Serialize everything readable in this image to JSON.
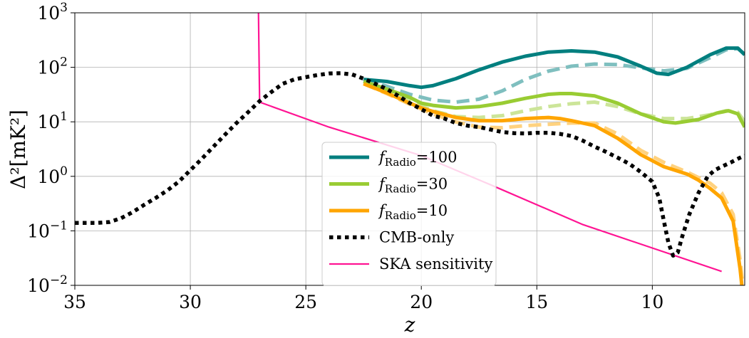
{
  "chart_data": {
    "type": "line",
    "title": "",
    "xlabel": "z",
    "ylabel": "Δ²[mK²]",
    "x_reversed": true,
    "xlim": [
      35,
      6
    ],
    "ylim": [
      0.01,
      1000
    ],
    "yscale": "log",
    "grid": true,
    "legend_position": "lower-center",
    "x_ticks": [
      {
        "value": 35,
        "label": "35"
      },
      {
        "value": 30,
        "label": "30"
      },
      {
        "value": 25,
        "label": "25"
      },
      {
        "value": 20,
        "label": "20"
      },
      {
        "value": 15,
        "label": "15"
      },
      {
        "value": 10,
        "label": "10"
      }
    ],
    "y_ticks": [
      {
        "value": 0.01,
        "base": "10",
        "exp": "−2"
      },
      {
        "value": 0.1,
        "base": "10",
        "exp": "−1"
      },
      {
        "value": 1,
        "base": "10",
        "exp": "0"
      },
      {
        "value": 10,
        "base": "10",
        "exp": "1"
      },
      {
        "value": 100,
        "base": "10",
        "exp": "2"
      },
      {
        "value": 1000,
        "base": "10",
        "exp": "3"
      }
    ],
    "series": [
      {
        "name": "f_Radio=100",
        "legend_main": "f",
        "legend_sub": "Radio",
        "legend_tail": "=100",
        "color": "#007f7f",
        "style": "solid",
        "in_legend": true,
        "points": [
          [
            22.5,
            60
          ],
          [
            21.5,
            55
          ],
          [
            20.5,
            46
          ],
          [
            20,
            43
          ],
          [
            19.5,
            46
          ],
          [
            18.5,
            62
          ],
          [
            17.5,
            90
          ],
          [
            16.5,
            125
          ],
          [
            15.5,
            160
          ],
          [
            14.5,
            190
          ],
          [
            13.5,
            200
          ],
          [
            12.5,
            190
          ],
          [
            11.5,
            155
          ],
          [
            10.5,
            105
          ],
          [
            9.8,
            78
          ],
          [
            9.3,
            74
          ],
          [
            8.5,
            100
          ],
          [
            7.5,
            170
          ],
          [
            6.8,
            225
          ],
          [
            6.3,
            225
          ],
          [
            6,
            170
          ]
        ]
      },
      {
        "name": "f_Radio=100 (dashed)",
        "color": "#7fbfbf",
        "style": "dashed",
        "in_legend": false,
        "points": [
          [
            22.5,
            60
          ],
          [
            21.5,
            45
          ],
          [
            20.5,
            32
          ],
          [
            19.5,
            25
          ],
          [
            18.5,
            23
          ],
          [
            17.5,
            26
          ],
          [
            16.5,
            37
          ],
          [
            15.5,
            60
          ],
          [
            14.5,
            85
          ],
          [
            13.5,
            105
          ],
          [
            12.5,
            115
          ],
          [
            11.5,
            112
          ],
          [
            10.5,
            98
          ],
          [
            9.5,
            86
          ],
          [
            8.5,
            96
          ],
          [
            7.5,
            150
          ],
          [
            6.8,
            210
          ],
          [
            6.3,
            220
          ],
          [
            6,
            175
          ]
        ]
      },
      {
        "name": "f_Radio=30",
        "legend_main": "f",
        "legend_sub": "Radio",
        "legend_tail": "=30",
        "color": "#99cc33",
        "style": "solid",
        "in_legend": true,
        "points": [
          [
            22.5,
            55
          ],
          [
            21.5,
            40
          ],
          [
            20.5,
            28
          ],
          [
            20,
            22
          ],
          [
            19.5,
            20
          ],
          [
            18.5,
            18
          ],
          [
            17.5,
            19
          ],
          [
            16.5,
            22
          ],
          [
            15.5,
            27
          ],
          [
            14.5,
            32
          ],
          [
            14,
            33
          ],
          [
            13.5,
            33
          ],
          [
            12.5,
            30
          ],
          [
            11.5,
            22
          ],
          [
            10.5,
            14
          ],
          [
            9.5,
            10
          ],
          [
            9,
            9.5
          ],
          [
            8,
            11
          ],
          [
            7.2,
            14.5
          ],
          [
            6.7,
            16
          ],
          [
            6.3,
            14
          ],
          [
            6,
            8
          ]
        ]
      },
      {
        "name": "f_Radio=30 (dashed)",
        "color": "#cce599",
        "style": "dashed",
        "in_legend": false,
        "points": [
          [
            22.5,
            55
          ],
          [
            21.5,
            38
          ],
          [
            20.5,
            24
          ],
          [
            19.5,
            16
          ],
          [
            18.5,
            12.5
          ],
          [
            17.5,
            12
          ],
          [
            16.5,
            13
          ],
          [
            15.5,
            16
          ],
          [
            14.5,
            19
          ],
          [
            13.5,
            21.5
          ],
          [
            12.5,
            23
          ],
          [
            11.5,
            19
          ],
          [
            10.5,
            14
          ],
          [
            9.5,
            11.5
          ],
          [
            8.5,
            11.5
          ],
          [
            7.5,
            13.5
          ],
          [
            6.8,
            16
          ],
          [
            6.3,
            15
          ],
          [
            6,
            10
          ]
        ]
      },
      {
        "name": "f_Radio=10",
        "legend_main": "f",
        "legend_sub": "Radio",
        "legend_tail": "=10",
        "color": "#ffa500",
        "style": "solid",
        "in_legend": true,
        "points": [
          [
            22.5,
            50
          ],
          [
            21.5,
            34
          ],
          [
            20.5,
            22
          ],
          [
            20,
            18
          ],
          [
            19.5,
            15.5
          ],
          [
            18.5,
            12
          ],
          [
            17.5,
            10.5
          ],
          [
            16.5,
            10.5
          ],
          [
            15.5,
            11.5
          ],
          [
            14.5,
            12
          ],
          [
            14,
            11.5
          ],
          [
            13.5,
            10.5
          ],
          [
            12.5,
            8.5
          ],
          [
            11.5,
            5
          ],
          [
            10.5,
            2.5
          ],
          [
            9.5,
            1.5
          ],
          [
            8.5,
            1.1
          ],
          [
            8,
            0.85
          ],
          [
            7.5,
            0.6
          ],
          [
            7,
            0.4
          ],
          [
            6.5,
            0.15
          ],
          [
            6.2,
            0.02
          ],
          [
            6.05,
            0.005
          ]
        ]
      },
      {
        "name": "f_Radio=10 (dashed)",
        "color": "#ffd27f",
        "style": "dashed",
        "in_legend": false,
        "points": [
          [
            22.5,
            50
          ],
          [
            21.5,
            33
          ],
          [
            20.5,
            21
          ],
          [
            19.5,
            14
          ],
          [
            18.5,
            10
          ],
          [
            17.5,
            8
          ],
          [
            16.5,
            7.8
          ],
          [
            15.5,
            8.5
          ],
          [
            14.5,
            9
          ],
          [
            13.5,
            9.5
          ],
          [
            12.5,
            9.5
          ],
          [
            11.5,
            6
          ],
          [
            10.5,
            3
          ],
          [
            9.5,
            1.8
          ],
          [
            8.5,
            1.2
          ],
          [
            7.5,
            0.75
          ],
          [
            7,
            0.5
          ],
          [
            6.5,
            0.2
          ],
          [
            6.2,
            0.03
          ],
          [
            6.05,
            0.008
          ]
        ]
      },
      {
        "name": "CMB-only",
        "legend_main": "CMB-only",
        "color": "#000000",
        "style": "dotted",
        "in_legend": true,
        "points": [
          [
            35,
            0.14
          ],
          [
            34,
            0.14
          ],
          [
            33.5,
            0.145
          ],
          [
            33,
            0.17
          ],
          [
            32.5,
            0.22
          ],
          [
            32,
            0.3
          ],
          [
            31.5,
            0.4
          ],
          [
            31,
            0.55
          ],
          [
            30.5,
            0.8
          ],
          [
            30,
            1.3
          ],
          [
            29.5,
            2.1
          ],
          [
            29,
            3.5
          ],
          [
            28.5,
            5.8
          ],
          [
            28,
            9.5
          ],
          [
            27.5,
            15
          ],
          [
            27,
            24
          ],
          [
            26.5,
            35
          ],
          [
            26,
            50
          ],
          [
            25.5,
            60
          ],
          [
            25,
            66
          ],
          [
            24.5,
            72
          ],
          [
            24,
            77
          ],
          [
            23.5,
            78
          ],
          [
            23,
            74
          ],
          [
            22.5,
            62
          ],
          [
            22,
            50
          ],
          [
            21.5,
            40
          ],
          [
            21,
            30
          ],
          [
            20.5,
            22
          ],
          [
            20,
            17
          ],
          [
            19.5,
            13
          ],
          [
            19,
            11.5
          ],
          [
            18.5,
            9.5
          ],
          [
            18,
            8.5
          ],
          [
            17.5,
            8
          ],
          [
            17,
            7.2
          ],
          [
            16.5,
            6.5
          ],
          [
            16,
            6.2
          ],
          [
            15.5,
            6.1
          ],
          [
            15,
            6.3
          ],
          [
            14.5,
            6.3
          ],
          [
            14,
            6
          ],
          [
            13.5,
            5.5
          ],
          [
            13,
            4.5
          ],
          [
            12.5,
            3.5
          ],
          [
            12,
            2.8
          ],
          [
            11.5,
            2.2
          ],
          [
            11,
            1.7
          ],
          [
            10.5,
            1.2
          ],
          [
            10,
            0.8
          ],
          [
            9.7,
            0.4
          ],
          [
            9.5,
            0.15
          ],
          [
            9.3,
            0.06
          ],
          [
            9.1,
            0.035
          ],
          [
            8.9,
            0.04
          ],
          [
            8.7,
            0.08
          ],
          [
            8.4,
            0.2
          ],
          [
            8,
            0.5
          ],
          [
            7.6,
            1
          ],
          [
            7.3,
            1.3
          ],
          [
            7,
            1.5
          ],
          [
            6.6,
            1.8
          ],
          [
            6.2,
            2.2
          ],
          [
            6,
            2.4
          ]
        ]
      },
      {
        "name": "SKA sensitivity",
        "legend_main": "SKA sensitivity",
        "color": "#ff1493",
        "style": "thin",
        "in_legend": true,
        "points": [
          [
            27.05,
            1000
          ],
          [
            27,
            23
          ],
          [
            24,
            8
          ],
          [
            20,
            2.4
          ],
          [
            17,
            0.7
          ],
          [
            13,
            0.13
          ],
          [
            7,
            0.018
          ]
        ]
      }
    ]
  }
}
